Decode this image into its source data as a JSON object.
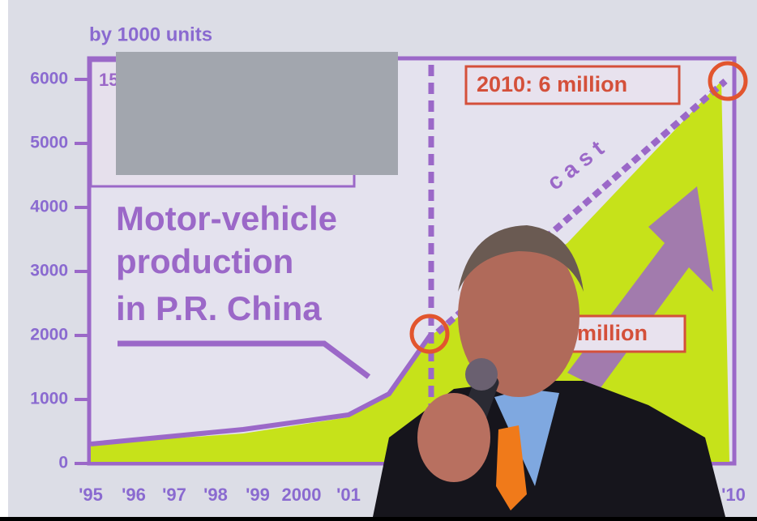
{
  "slide": {
    "unit_label": "by 1000 units",
    "y_ticks": [
      "0",
      "1000",
      "2000",
      "3000",
      "4000",
      "5000",
      "6000"
    ],
    "x_ticks": [
      "'95",
      "'96",
      "'97",
      "'98",
      "'99",
      "2000",
      "'01",
      "'10"
    ],
    "title_lines": [
      "Motor-vehicle",
      "production",
      "in P.R. China"
    ],
    "highlight_label": "2010: 6 million",
    "partial_label": "million",
    "forecast_label": "c a s t",
    "corner_text": "15"
  }
}
